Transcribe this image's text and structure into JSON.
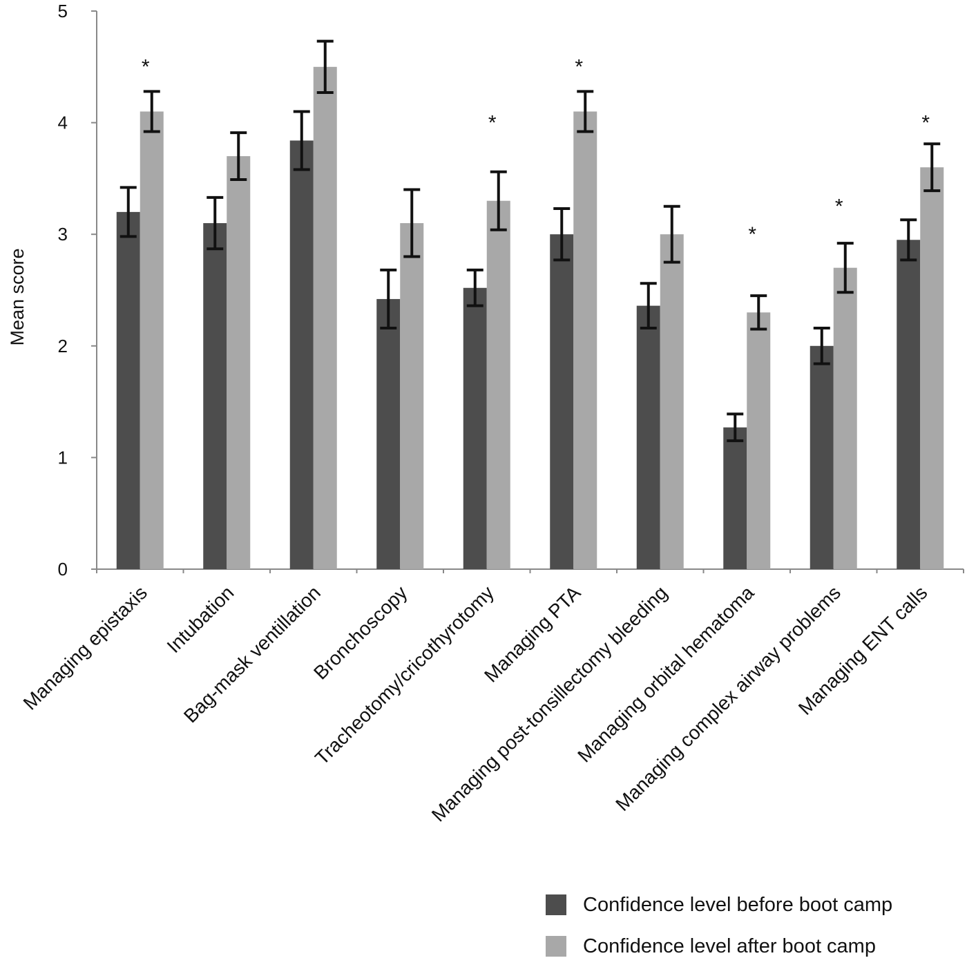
{
  "chart_data": {
    "type": "bar",
    "title": "",
    "xlabel": "",
    "ylabel": "Mean score",
    "ylim": [
      0,
      5
    ],
    "yticks": [
      "0",
      "1",
      "2",
      "3",
      "4",
      "5"
    ],
    "categories": [
      "Managing epistaxis",
      "Intubation",
      "Bag-mask ventillation",
      "Bronchoscopy",
      "Tracheotomy/cricothyrotomy",
      "Managing PTA",
      "Managing post-tonsillectomy bleeding",
      "Managing orbital hematoma",
      "Managing complex airway problems",
      "Managing ENT calls"
    ],
    "series": [
      {
        "name": "Confidence level before boot camp",
        "color": "#4d4d4d",
        "values": [
          3.2,
          3.1,
          3.84,
          2.42,
          2.52,
          3.0,
          2.36,
          1.27,
          2.0,
          2.95
        ],
        "errors": [
          0.22,
          0.23,
          0.26,
          0.26,
          0.16,
          0.23,
          0.2,
          0.12,
          0.16,
          0.18
        ]
      },
      {
        "name": "Confidence level after boot camp",
        "color": "#a8a8a8",
        "values": [
          4.1,
          3.7,
          4.5,
          3.1,
          3.3,
          4.1,
          3.0,
          2.3,
          2.7,
          3.6
        ],
        "errors": [
          0.18,
          0.21,
          0.23,
          0.3,
          0.26,
          0.18,
          0.25,
          0.15,
          0.22,
          0.21
        ]
      }
    ],
    "significance": [
      {
        "category_index": 0,
        "label": "*",
        "y": 4.55
      },
      {
        "category_index": 4,
        "label": "*",
        "y": 4.05
      },
      {
        "category_index": 5,
        "label": "*",
        "y": 4.55
      },
      {
        "category_index": 7,
        "label": "*",
        "y": 3.05
      },
      {
        "category_index": 8,
        "label": "*",
        "y": 3.3
      },
      {
        "category_index": 9,
        "label": "*",
        "y": 4.05
      }
    ],
    "legend_position": "bottom-right"
  }
}
